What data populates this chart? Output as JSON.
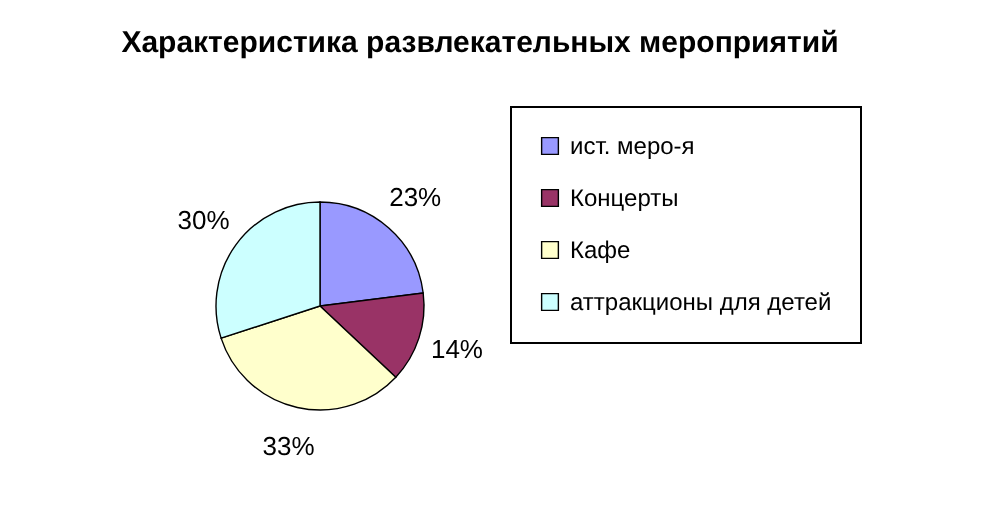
{
  "chart_data": {
    "type": "pie",
    "title": "Характеристика развлекательных мероприятий",
    "categories": [
      "ист. меро-я",
      "Концерты",
      "Кафе",
      "аттракционы для детей"
    ],
    "values": [
      23,
      14,
      33,
      30
    ],
    "colors": [
      "#9999ff",
      "#993366",
      "#ffffcc",
      "#ccffff"
    ],
    "value_labels": [
      "23%",
      "14%",
      "33%",
      "30%"
    ],
    "legend": "right"
  }
}
